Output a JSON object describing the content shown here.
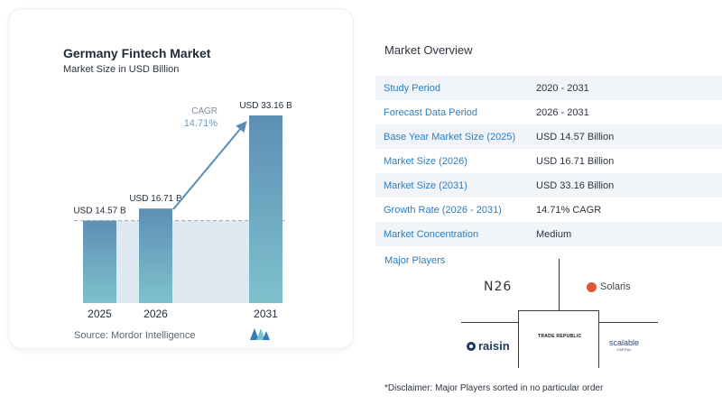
{
  "chart": {
    "title": "Germany Fintech Market",
    "subtitle": "Market Size in USD Billion",
    "source": "Source:  Mordor Intelligence",
    "cagr_label": "CAGR",
    "cagr_value": "14.71%"
  },
  "chart_data": {
    "type": "bar",
    "categories": [
      "2025",
      "2026",
      "2031"
    ],
    "values": [
      14.57,
      16.71,
      33.16
    ],
    "data_labels": [
      "USD 14.57 B",
      "USD 16.71 B",
      "USD 33.16 B"
    ],
    "title": "Germany Fintech Market",
    "subtitle": "Market Size in USD Billion",
    "xlabel": "",
    "ylabel": "",
    "ylim": [
      0,
      33.16
    ],
    "grid": false,
    "annotation": "CAGR 14.71%"
  },
  "colors": {
    "bar_top": "#5e8fb5",
    "bar_bottom": "#7ec1cc",
    "band": "#dfe9f2",
    "arrow": "#5a8db4",
    "accent": "#2f7dbc"
  },
  "overview": {
    "title": "Market Overview",
    "rows": [
      {
        "key": "Study Period",
        "value": "2020 - 2031"
      },
      {
        "key": "Forecast Data Period",
        "value": "2026 - 2031"
      },
      {
        "key": "Base Year Market Size (2025)",
        "value": "USD 14.57 Billion"
      },
      {
        "key": "Market Size (2026)",
        "value": "USD 16.71 Billion"
      },
      {
        "key": "Market Size (2031)",
        "value": "USD 33.16 Billion"
      },
      {
        "key": "Growth Rate (2026 - 2031)",
        "value": "14.71% CAGR"
      },
      {
        "key": "Market Concentration",
        "value": "Medium"
      }
    ],
    "players_title": "Major Players",
    "players": {
      "n26": "N26",
      "solaris": "Solaris",
      "trade_republic": "TRADE REPUBLIC",
      "raisin": "raisin",
      "scalable": "scalable",
      "scalable_sub": "CAPITAL"
    },
    "disclaimer": "*Disclaimer: Major Players sorted in no particular order"
  }
}
